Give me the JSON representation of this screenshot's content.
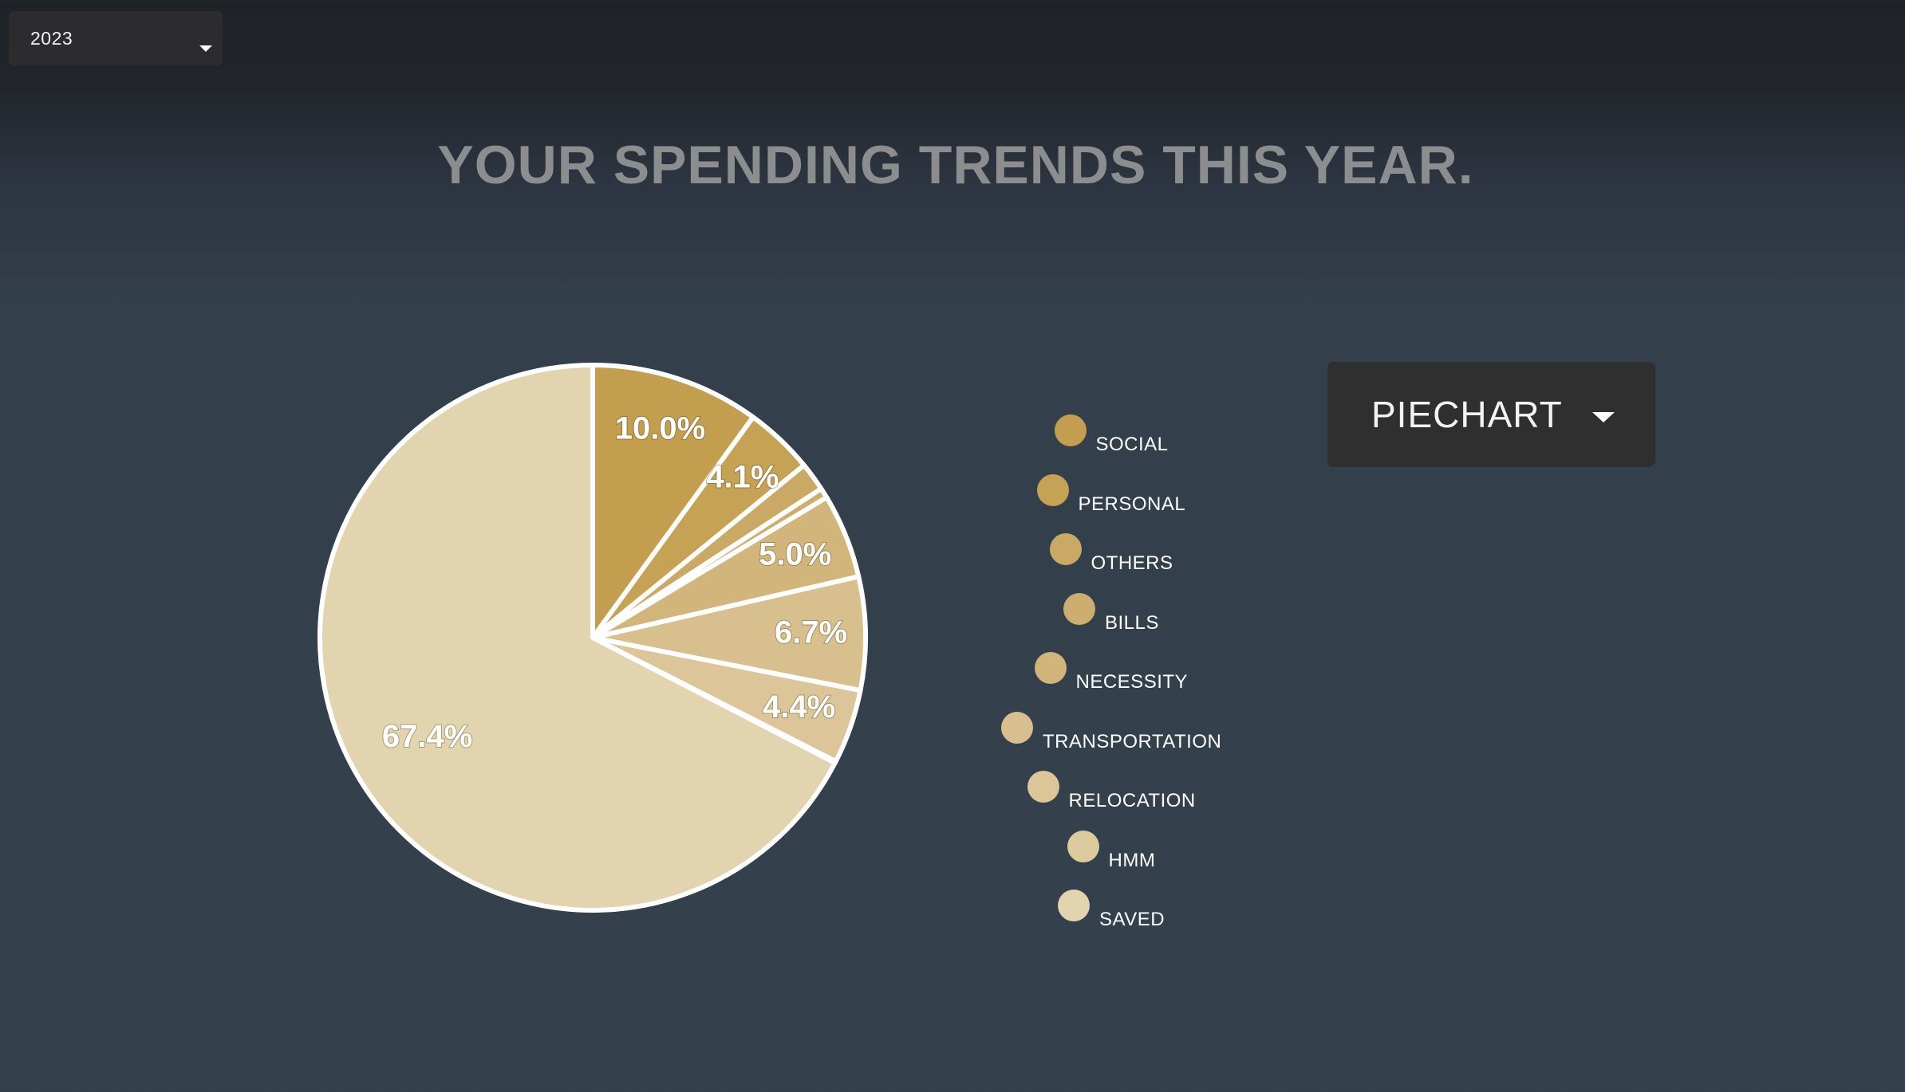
{
  "year_select": {
    "value": "2023"
  },
  "title": "YOUR SPENDING TRENDS THIS YEAR.",
  "chart_type_select": {
    "value": "PIECHART"
  },
  "chart_data": {
    "type": "pie",
    "title": "YOUR SPENDING TRENDS THIS YEAR.",
    "categories": [
      "SOCIAL",
      "PERSONAL",
      "OTHERS",
      "BILLS",
      "NECESSITY",
      "TRANSPORTATION",
      "RELOCATION",
      "HMM",
      "SAVED"
    ],
    "values": [
      10.0,
      4.1,
      1.7,
      0.6,
      5.0,
      6.7,
      4.4,
      0.1,
      67.4
    ],
    "labels": [
      "10.0%",
      "4.1%",
      "",
      "",
      "5.0%",
      "6.7%",
      "4.4%",
      "",
      "67.4%"
    ],
    "colors": [
      "#c29e4e",
      "#c6a255",
      "#caa965",
      "#cdae6f",
      "#d1b57a",
      "#d8c08e",
      "#dbc599",
      "#ddca9f",
      "#e3d4b0"
    ],
    "legend_position": "right",
    "unit": "%"
  }
}
